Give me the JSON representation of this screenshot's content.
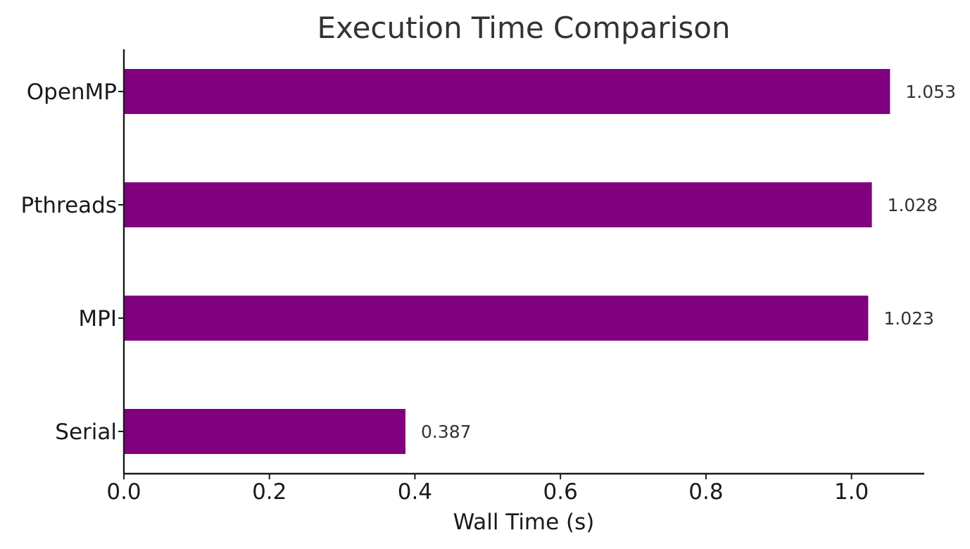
{
  "chart_data": {
    "type": "bar",
    "orientation": "horizontal",
    "title": "Execution Time Comparison",
    "xlabel": "Wall Time (s)",
    "ylabel": "",
    "categories": [
      "Serial",
      "MPI",
      "Pthreads",
      "OpenMP"
    ],
    "values": [
      0.387,
      1.023,
      1.028,
      1.053
    ],
    "data_labels": [
      "0.387",
      "1.023",
      "1.028",
      "1.053"
    ],
    "xlim": [
      0,
      1.1
    ],
    "xticks": [
      0.0,
      0.2,
      0.4,
      0.6,
      0.8,
      1.0
    ],
    "xtick_labels": [
      "0.0",
      "0.2",
      "0.4",
      "0.6",
      "0.8",
      "1.0"
    ],
    "bar_color": "#800080",
    "grid": false,
    "legend": false
  }
}
